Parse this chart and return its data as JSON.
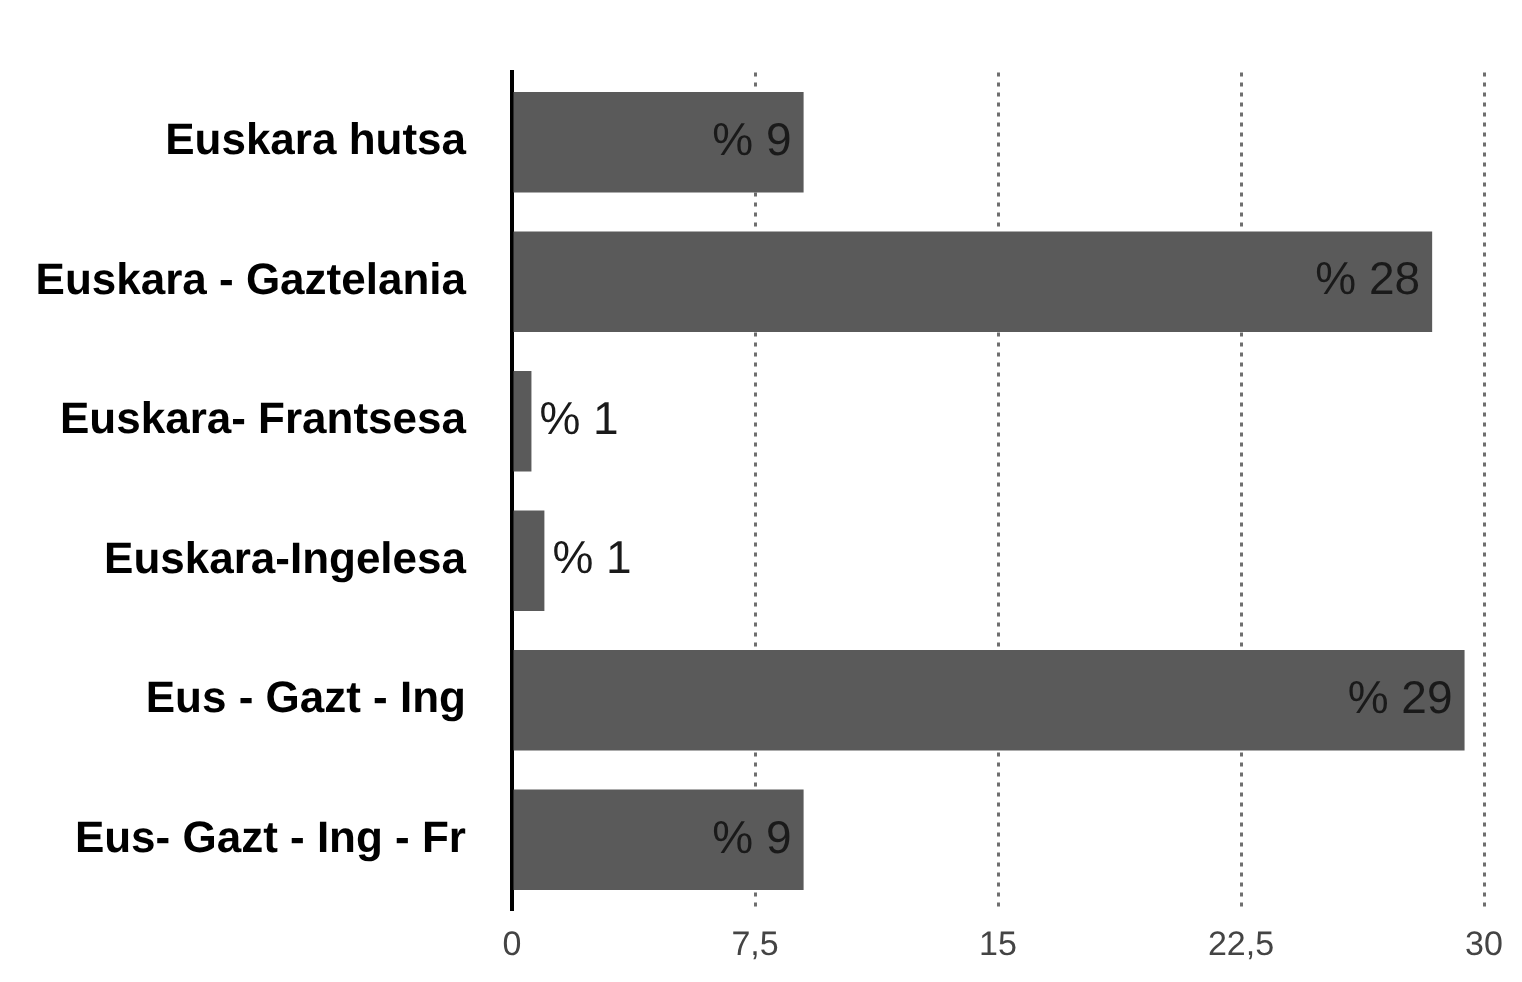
{
  "chart_data": {
    "type": "bar",
    "orientation": "horizontal",
    "categories": [
      "Euskara hutsa",
      "Euskara - Gaztelania",
      "Euskara- Frantsesa",
      "Euskara-Ingelesa",
      "Eus - Gazt - Ing",
      "Eus- Gazt - Ing - Fr"
    ],
    "values": [
      9,
      28.4,
      0.6,
      1,
      29.4,
      9
    ],
    "color": "#5a5a5a",
    "value_labels": [
      "% 9",
      "% 28",
      "% 1",
      "% 1",
      "% 29",
      "% 9"
    ],
    "xlim": [
      0,
      30
    ],
    "xticks": [
      0,
      {
        "value": 7.5,
        "label": "7,5"
      },
      15,
      {
        "value": 22.5,
        "label": "22,5"
      },
      30
    ],
    "grid": "x"
  }
}
